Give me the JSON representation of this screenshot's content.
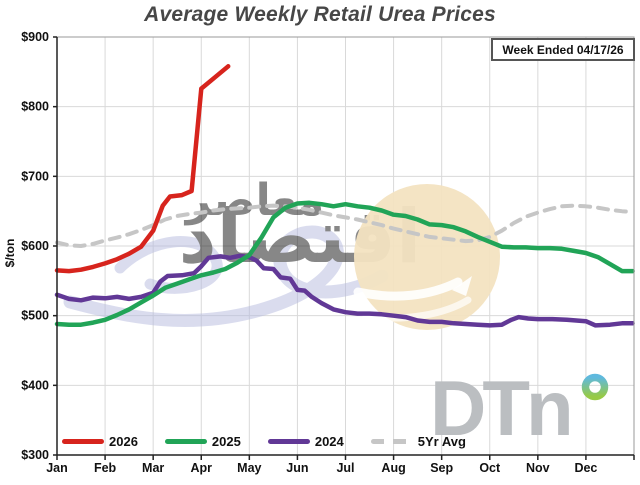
{
  "title": "Average Weekly Retail Urea Prices",
  "badge": {
    "label": "Week Ended 04/17/26"
  },
  "legend": {
    "position": "bottom-left",
    "items": [
      {
        "label": "2026",
        "color": "#d7241d",
        "dashed": false
      },
      {
        "label": "2025",
        "color": "#21a457",
        "dashed": false
      },
      {
        "label": "2024",
        "color": "#613896",
        "dashed": false
      },
      {
        "label": "5Yr Avg",
        "color": "#c6c6c6",
        "dashed": true
      }
    ]
  },
  "watermarks": {
    "dtn_text": "DTn",
    "calligraphy_text": "اقتصاد",
    "calligraphy_text2": "معاصر",
    "calligraphy_color": "#b6bbdf",
    "tan_circle_color": "#f3e3c1"
  },
  "chart_data": {
    "type": "line",
    "title": "Average Weekly Retail Urea Prices",
    "xlabel": "",
    "ylabel": "$/ton",
    "ylim": [
      300,
      900
    ],
    "ytick_step": 100,
    "ytick_labels": [
      "$300",
      "$400",
      "$500",
      "$600",
      "$700",
      "$800",
      "$900"
    ],
    "months": [
      "Jan",
      "Feb",
      "Mar",
      "Apr",
      "May",
      "Jun",
      "Jul",
      "Aug",
      "Sep",
      "Oct",
      "Nov",
      "Dec"
    ],
    "x_units": "months from Jan 1 (0-12), weekly data",
    "grid": true,
    "legend_position": "bottom-left",
    "series": [
      {
        "name": "5Yr Avg",
        "color": "#c6c6c6",
        "style": "dashed",
        "width": 4,
        "points": [
          [
            0,
            605
          ],
          [
            0.25,
            601
          ],
          [
            0.5,
            600
          ],
          [
            0.75,
            603
          ],
          [
            1,
            608
          ],
          [
            1.25,
            612
          ],
          [
            1.5,
            617
          ],
          [
            1.75,
            623
          ],
          [
            2,
            630
          ],
          [
            2.25,
            638
          ],
          [
            2.5,
            643
          ],
          [
            2.75,
            646
          ],
          [
            3,
            648
          ],
          [
            3.25,
            651
          ],
          [
            3.5,
            653
          ],
          [
            3.75,
            654
          ],
          [
            4,
            655
          ],
          [
            4.25,
            657
          ],
          [
            4.5,
            658
          ],
          [
            4.75,
            657
          ],
          [
            5,
            655
          ],
          [
            5.25,
            652
          ],
          [
            5.5,
            648
          ],
          [
            5.75,
            644
          ],
          [
            6,
            641
          ],
          [
            6.25,
            638
          ],
          [
            6.5,
            634
          ],
          [
            6.75,
            630
          ],
          [
            7,
            625
          ],
          [
            7.25,
            621
          ],
          [
            7.5,
            617
          ],
          [
            7.75,
            613
          ],
          [
            8,
            611
          ],
          [
            8.25,
            609
          ],
          [
            8.5,
            607
          ],
          [
            8.75,
            608
          ],
          [
            9,
            613
          ],
          [
            9.25,
            622
          ],
          [
            9.5,
            633
          ],
          [
            9.75,
            642
          ],
          [
            10,
            648
          ],
          [
            10.25,
            653
          ],
          [
            10.5,
            657
          ],
          [
            10.75,
            658
          ],
          [
            11,
            657
          ],
          [
            11.25,
            655
          ],
          [
            11.5,
            652
          ],
          [
            11.75,
            650
          ],
          [
            11.97,
            649
          ]
        ]
      },
      {
        "name": "2024",
        "color": "#613896",
        "style": "solid",
        "width": 4.5,
        "points": [
          [
            0,
            530
          ],
          [
            0.25,
            524
          ],
          [
            0.5,
            522
          ],
          [
            0.75,
            526
          ],
          [
            1,
            525
          ],
          [
            1.25,
            527
          ],
          [
            1.5,
            524
          ],
          [
            1.75,
            527
          ],
          [
            2,
            533
          ],
          [
            2.15,
            549
          ],
          [
            2.3,
            557
          ],
          [
            2.6,
            558
          ],
          [
            2.85,
            561
          ],
          [
            3,
            571
          ],
          [
            3.15,
            583
          ],
          [
            3.4,
            585
          ],
          [
            3.6,
            583
          ],
          [
            3.8,
            586
          ],
          [
            4,
            584
          ],
          [
            4.15,
            579
          ],
          [
            4.3,
            568
          ],
          [
            4.5,
            567
          ],
          [
            4.65,
            555
          ],
          [
            4.85,
            553
          ],
          [
            5,
            537
          ],
          [
            5.15,
            536
          ],
          [
            5.3,
            527
          ],
          [
            5.5,
            518
          ],
          [
            5.75,
            509
          ],
          [
            6,
            505
          ],
          [
            6.25,
            503
          ],
          [
            6.5,
            503
          ],
          [
            6.75,
            502
          ],
          [
            7,
            500
          ],
          [
            7.25,
            498
          ],
          [
            7.5,
            493
          ],
          [
            7.75,
            491
          ],
          [
            8,
            491
          ],
          [
            8.25,
            489
          ],
          [
            8.5,
            488
          ],
          [
            8.75,
            487
          ],
          [
            9,
            486
          ],
          [
            9.25,
            487
          ],
          [
            9.45,
            494
          ],
          [
            9.6,
            498
          ],
          [
            9.8,
            496
          ],
          [
            10,
            495
          ],
          [
            10.3,
            495
          ],
          [
            10.6,
            494
          ],
          [
            11,
            492
          ],
          [
            11.2,
            486
          ],
          [
            11.5,
            487
          ],
          [
            11.75,
            489
          ],
          [
            11.97,
            489
          ]
        ]
      },
      {
        "name": "2025",
        "color": "#21a457",
        "style": "solid",
        "width": 4.5,
        "points": [
          [
            0,
            488
          ],
          [
            0.25,
            487
          ],
          [
            0.5,
            487
          ],
          [
            0.75,
            490
          ],
          [
            1,
            494
          ],
          [
            1.25,
            501
          ],
          [
            1.5,
            509
          ],
          [
            1.75,
            519
          ],
          [
            2,
            529
          ],
          [
            2.25,
            540
          ],
          [
            2.5,
            546
          ],
          [
            2.75,
            552
          ],
          [
            3,
            558
          ],
          [
            3.25,
            562
          ],
          [
            3.5,
            567
          ],
          [
            3.75,
            576
          ],
          [
            4,
            587
          ],
          [
            4.25,
            612
          ],
          [
            4.5,
            641
          ],
          [
            4.75,
            655
          ],
          [
            5,
            661
          ],
          [
            5.25,
            662
          ],
          [
            5.5,
            660
          ],
          [
            5.75,
            657
          ],
          [
            6,
            660
          ],
          [
            6.25,
            657
          ],
          [
            6.5,
            655
          ],
          [
            6.75,
            651
          ],
          [
            7,
            645
          ],
          [
            7.25,
            643
          ],
          [
            7.5,
            638
          ],
          [
            7.75,
            631
          ],
          [
            8,
            630
          ],
          [
            8.25,
            627
          ],
          [
            8.5,
            621
          ],
          [
            8.75,
            613
          ],
          [
            9,
            606
          ],
          [
            9.25,
            599
          ],
          [
            9.5,
            598
          ],
          [
            9.75,
            598
          ],
          [
            10,
            597
          ],
          [
            10.25,
            597
          ],
          [
            10.5,
            596
          ],
          [
            10.75,
            593
          ],
          [
            11,
            590
          ],
          [
            11.25,
            584
          ],
          [
            11.5,
            574
          ],
          [
            11.75,
            564
          ],
          [
            11.97,
            564
          ]
        ]
      },
      {
        "name": "2026",
        "color": "#d7241d",
        "style": "solid",
        "width": 4.5,
        "points": [
          [
            0,
            565
          ],
          [
            0.25,
            564
          ],
          [
            0.5,
            566
          ],
          [
            0.75,
            570
          ],
          [
            1,
            575
          ],
          [
            1.25,
            581
          ],
          [
            1.5,
            589
          ],
          [
            1.75,
            599
          ],
          [
            2,
            622
          ],
          [
            2.2,
            658
          ],
          [
            2.35,
            671
          ],
          [
            2.6,
            673
          ],
          [
            2.8,
            679
          ],
          [
            3,
            826
          ],
          [
            3.3,
            843
          ],
          [
            3.56,
            858
          ]
        ]
      }
    ]
  }
}
